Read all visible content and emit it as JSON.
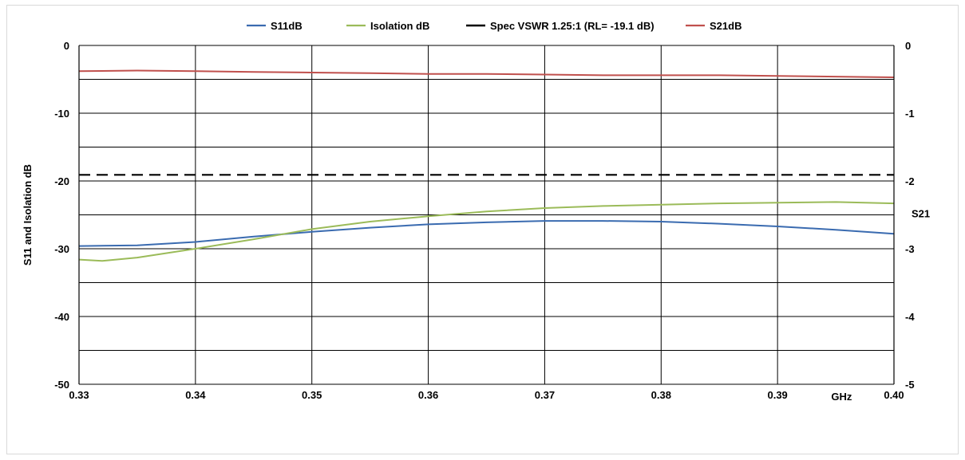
{
  "chart_data": {
    "type": "line",
    "title": "",
    "xlabel": "GHz",
    "ylabel": "S11 and Isolation dB",
    "y2label": "S21",
    "xlim": [
      0.33,
      0.4
    ],
    "ylim": [
      -50,
      0
    ],
    "y2lim": [
      -5,
      0
    ],
    "x_ticks": [
      "0.33",
      "0.34",
      "0.35",
      "0.36",
      "0.37",
      "0.38",
      "0.39",
      "0.40"
    ],
    "y_ticks": [
      "0",
      "-10",
      "-20",
      "-30",
      "-40",
      "-50"
    ],
    "y2_ticks": [
      "0",
      "-1",
      "-2",
      "-3",
      "-4",
      "-5"
    ],
    "grid": true,
    "legend_position": "top",
    "series": [
      {
        "name": "S11dB",
        "color": "#3a6bb0",
        "axis": "left",
        "x": [
          0.33,
          0.335,
          0.34,
          0.345,
          0.35,
          0.355,
          0.36,
          0.365,
          0.37,
          0.375,
          0.38,
          0.385,
          0.39,
          0.395,
          0.4
        ],
        "y": [
          -29.6,
          -29.5,
          -29.0,
          -28.2,
          -27.5,
          -26.9,
          -26.4,
          -26.1,
          -25.9,
          -25.9,
          -26.0,
          -26.3,
          -26.7,
          -27.2,
          -27.8
        ]
      },
      {
        "name": "Isolation dB",
        "color": "#9bbb59",
        "axis": "left",
        "x": [
          0.33,
          0.332,
          0.335,
          0.34,
          0.345,
          0.35,
          0.355,
          0.36,
          0.365,
          0.37,
          0.375,
          0.38,
          0.385,
          0.39,
          0.395,
          0.4
        ],
        "y": [
          -31.6,
          -31.8,
          -31.3,
          -30.0,
          -28.6,
          -27.1,
          -26.0,
          -25.2,
          -24.5,
          -24.0,
          -23.7,
          -23.5,
          -23.3,
          -23.2,
          -23.1,
          -23.3
        ]
      },
      {
        "name": "Spec VSWR 1.25:1 (RL= -19.1 dB)",
        "color": "#000000",
        "axis": "left",
        "dashed": true,
        "x": [
          0.33,
          0.4
        ],
        "y": [
          -19.1,
          -19.1
        ]
      },
      {
        "name": "S21dB",
        "color": "#c0504d",
        "axis": "right",
        "x": [
          0.33,
          0.335,
          0.34,
          0.345,
          0.35,
          0.355,
          0.36,
          0.365,
          0.37,
          0.375,
          0.38,
          0.385,
          0.39,
          0.395,
          0.4
        ],
        "y": [
          -0.38,
          -0.37,
          -0.38,
          -0.39,
          -0.4,
          -0.41,
          -0.42,
          -0.42,
          -0.43,
          -0.44,
          -0.44,
          -0.44,
          -0.45,
          -0.46,
          -0.47
        ]
      }
    ]
  }
}
